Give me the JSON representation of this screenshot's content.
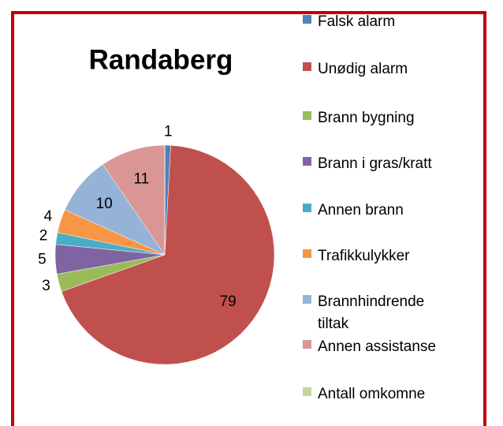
{
  "chart_data": {
    "type": "pie",
    "title": "Randaberg",
    "categories": [
      "Falsk alarm",
      "Unødig alarm",
      "Brann bygning",
      "Brann i gras/kratt",
      "Annen brann",
      "Trafikkulykker",
      "Brannhindrende tiltak",
      "Annen assistanse",
      "Antall omkomne"
    ],
    "values": [
      1,
      79,
      3,
      5,
      2,
      4,
      10,
      11,
      0
    ],
    "colors": [
      "#4f81bd",
      "#c0504d",
      "#9bbb59",
      "#8064a2",
      "#4bacc6",
      "#f79646",
      "#95b3d7",
      "#d99694",
      "#c3d69b"
    ],
    "legend": "right"
  }
}
